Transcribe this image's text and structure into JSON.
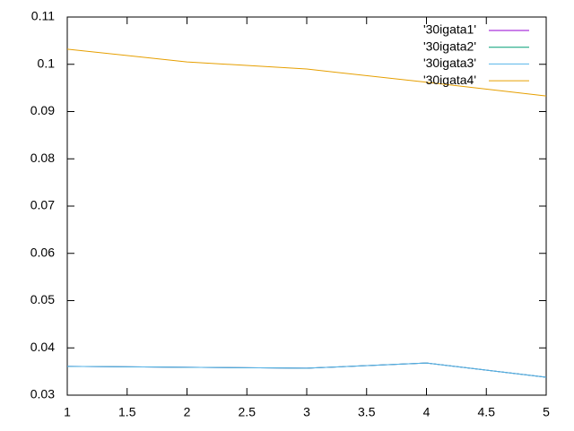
{
  "chart_data": {
    "type": "line",
    "x": [
      1,
      2,
      3,
      4,
      5
    ],
    "series": [
      {
        "name": "'30igata1'",
        "color": "#9400d3",
        "values": [
          0.0361,
          0.0359,
          0.0357,
          0.0368,
          0.0338
        ]
      },
      {
        "name": "'30igata2'",
        "color": "#009e73",
        "values": [
          0.0361,
          0.0359,
          0.0357,
          0.0368,
          0.0338
        ]
      },
      {
        "name": "'30igata3'",
        "color": "#56b4e9",
        "values": [
          0.0361,
          0.0359,
          0.0357,
          0.0368,
          0.0338
        ]
      },
      {
        "name": "'30igata4'",
        "color": "#e69f00",
        "values": [
          0.1032,
          0.1005,
          0.099,
          0.0962,
          0.0933
        ]
      }
    ],
    "xlim": [
      1,
      5
    ],
    "xticks": [
      1,
      1.5,
      2,
      2.5,
      3,
      3.5,
      4,
      4.5,
      5
    ],
    "ylim": [
      0.03,
      0.11
    ],
    "yticks": [
      0.03,
      0.04,
      0.05,
      0.06,
      0.07,
      0.08,
      0.09,
      0.1,
      0.11
    ],
    "legend": "top-right"
  }
}
